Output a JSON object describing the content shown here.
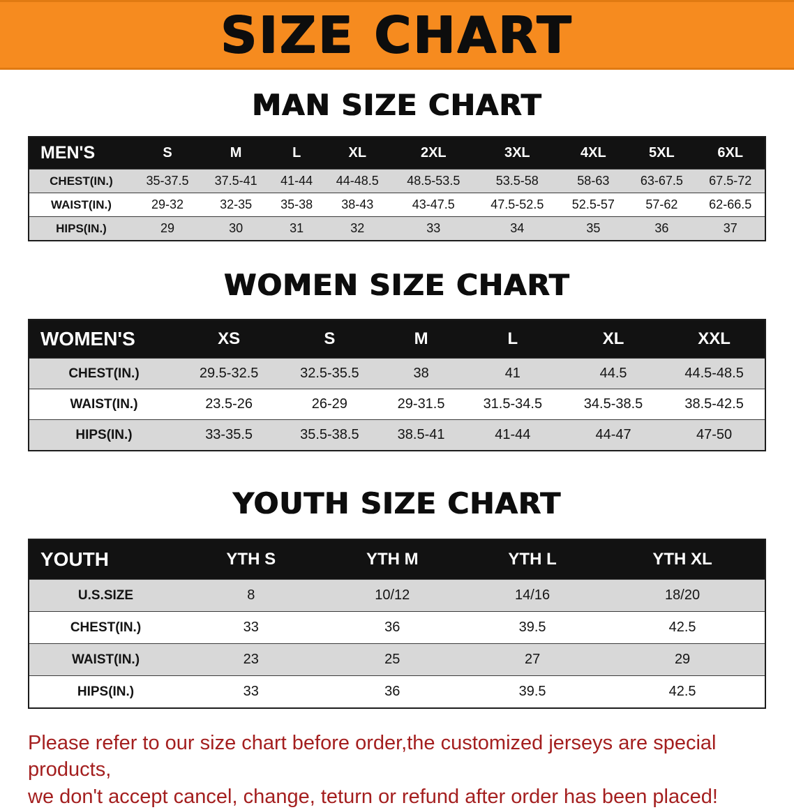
{
  "banner": {
    "title": "SIZE CHART"
  },
  "colors": {
    "banner_bg": "#f68b1f",
    "table_header_bg": "#121212",
    "row_shade": "#d8d8d8",
    "disclaimer_text": "#a41f1f"
  },
  "chart_data": [
    {
      "type": "table",
      "title": "MAN SIZE CHART",
      "corner": "MEN'S",
      "columns": [
        "S",
        "M",
        "L",
        "XL",
        "2XL",
        "3XL",
        "4XL",
        "5XL",
        "6XL"
      ],
      "rows": [
        {
          "label": "CHEST(IN.)",
          "values": [
            "35-37.5",
            "37.5-41",
            "41-44",
            "44-48.5",
            "48.5-53.5",
            "53.5-58",
            "58-63",
            "63-67.5",
            "67.5-72"
          ]
        },
        {
          "label": "WAIST(IN.)",
          "values": [
            "29-32",
            "32-35",
            "35-38",
            "38-43",
            "43-47.5",
            "47.5-52.5",
            "52.5-57",
            "57-62",
            "62-66.5"
          ]
        },
        {
          "label": "HIPS(IN.)",
          "values": [
            "29",
            "30",
            "31",
            "32",
            "33",
            "34",
            "35",
            "36",
            "37"
          ]
        }
      ]
    },
    {
      "type": "table",
      "title": "WOMEN SIZE CHART",
      "corner": "WOMEN'S",
      "columns": [
        "XS",
        "S",
        "M",
        "L",
        "XL",
        "XXL"
      ],
      "rows": [
        {
          "label": "CHEST(IN.)",
          "values": [
            "29.5-32.5",
            "32.5-35.5",
            "38",
            "41",
            "44.5",
            "44.5-48.5"
          ]
        },
        {
          "label": "WAIST(IN.)",
          "values": [
            "23.5-26",
            "26-29",
            "29-31.5",
            "31.5-34.5",
            "34.5-38.5",
            "38.5-42.5"
          ]
        },
        {
          "label": "HIPS(IN.)",
          "values": [
            "33-35.5",
            "35.5-38.5",
            "38.5-41",
            "41-44",
            "44-47",
            "47-50"
          ]
        }
      ]
    },
    {
      "type": "table",
      "title": "YOUTH SIZE CHART",
      "corner": "YOUTH",
      "columns": [
        "YTH S",
        "YTH M",
        "YTH L",
        "YTH XL"
      ],
      "rows": [
        {
          "label": "U.S.SIZE",
          "values": [
            "8",
            "10/12",
            "14/16",
            "18/20"
          ]
        },
        {
          "label": "CHEST(IN.)",
          "values": [
            "33",
            "36",
            "39.5",
            "42.5"
          ]
        },
        {
          "label": "WAIST(IN.)",
          "values": [
            "23",
            "25",
            "27",
            "29"
          ]
        },
        {
          "label": "HIPS(IN.)",
          "values": [
            "33",
            "36",
            "39.5",
            "42.5"
          ]
        }
      ]
    }
  ],
  "footer": {
    "line1": "Please refer to our size chart before order,the customized jerseys are special products,",
    "line2": "we don't accept cancel, change, teturn or refund after order has been placed!"
  }
}
